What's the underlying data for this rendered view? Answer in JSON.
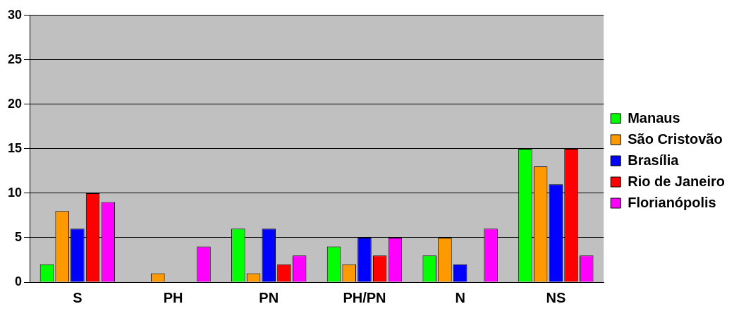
{
  "chart_data": {
    "type": "bar",
    "categories": [
      "S",
      "PH",
      "PN",
      "PH/PN",
      "N",
      "NS"
    ],
    "series": [
      {
        "name": "Manaus",
        "color": "#00ff00",
        "values": [
          2,
          0,
          6,
          4,
          3,
          15
        ]
      },
      {
        "name": "São Cristovão",
        "color": "#ff9900",
        "values": [
          8,
          1,
          1,
          2,
          5,
          13
        ]
      },
      {
        "name": "Brasília",
        "color": "#0000ff",
        "values": [
          6,
          0,
          6,
          5,
          2,
          11
        ]
      },
      {
        "name": "Rio de Janeiro",
        "color": "#ff0000",
        "values": [
          10,
          0,
          2,
          3,
          0,
          15
        ]
      },
      {
        "name": "Florianópolis",
        "color": "#ff00ff",
        "values": [
          9,
          4,
          3,
          5,
          6,
          3
        ]
      }
    ],
    "ylim": [
      0,
      30
    ],
    "yticks": [
      0,
      5,
      10,
      15,
      20,
      25,
      30
    ],
    "grid": "y",
    "legend": "right"
  }
}
